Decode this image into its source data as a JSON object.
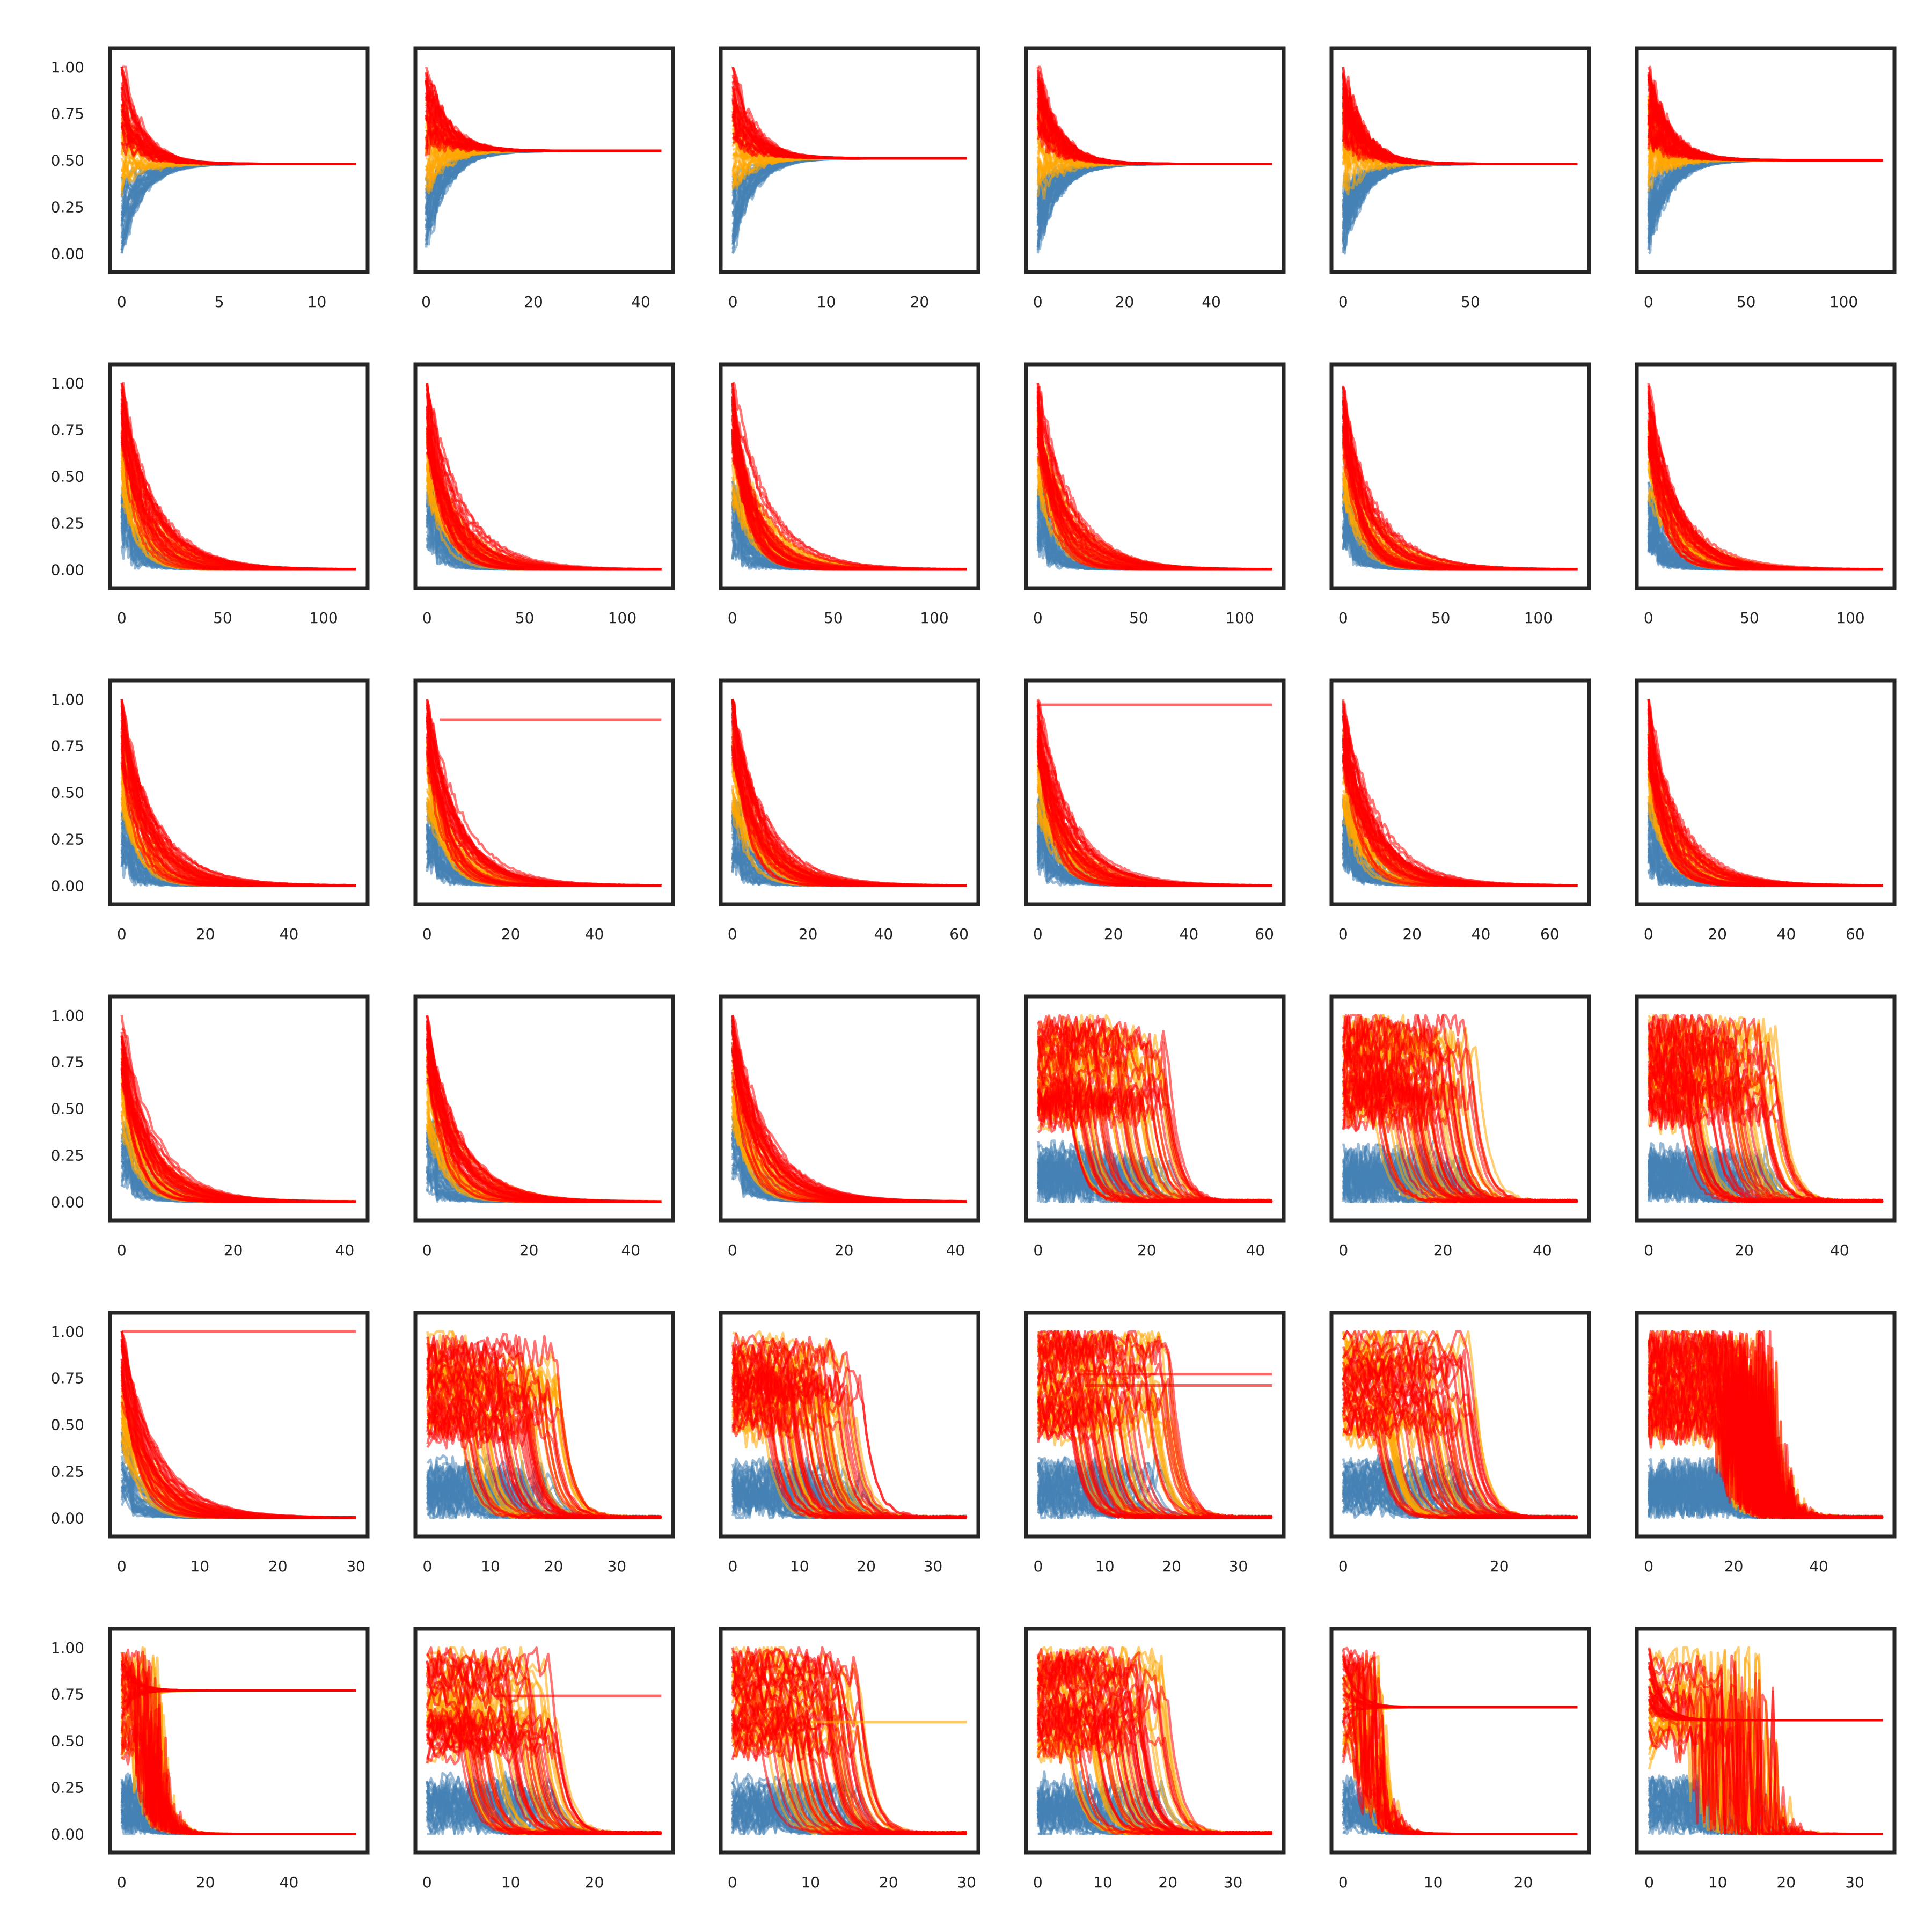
{
  "figure": {
    "rows": 6,
    "cols": 6,
    "colors": {
      "blue": "#4682b4",
      "orange": "#ffa500",
      "red": "#ff0000",
      "frame": "#262626"
    },
    "ylim": [
      -0.1,
      1.1
    ],
    "ytick_labels": [
      "0.00",
      "0.25",
      "0.50",
      "0.75",
      "1.00"
    ]
  },
  "chart_data": [
    {
      "type": "line",
      "row": 0,
      "col": 0,
      "xlim": [
        -0.6,
        12.6
      ],
      "xticks": [
        0,
        5,
        10
      ],
      "converge": 0.48,
      "shape": "to-value"
    },
    {
      "type": "line",
      "row": 0,
      "col": 1,
      "xlim": [
        -2,
        46
      ],
      "xticks": [
        0,
        20,
        40
      ],
      "converge": 0.55,
      "shape": "to-value"
    },
    {
      "type": "line",
      "row": 0,
      "col": 2,
      "xlim": [
        -1.3,
        26.3
      ],
      "xticks": [
        0,
        10,
        20
      ],
      "converge": 0.51,
      "shape": "to-value"
    },
    {
      "type": "line",
      "row": 0,
      "col": 3,
      "xlim": [
        -2.7,
        56.7
      ],
      "xticks": [
        0,
        20,
        40
      ],
      "converge": 0.48,
      "shape": "to-value"
    },
    {
      "type": "line",
      "row": 0,
      "col": 4,
      "xlim": [
        -4.6,
        96.6
      ],
      "xticks": [
        0,
        50
      ],
      "converge": 0.48,
      "shape": "to-value"
    },
    {
      "type": "line",
      "row": 0,
      "col": 5,
      "xlim": [
        -6,
        126
      ],
      "xticks": [
        0,
        50,
        100
      ],
      "converge": 0.5,
      "shape": "to-value"
    },
    {
      "type": "line",
      "row": 1,
      "col": 0,
      "xlim": [
        -5.8,
        121.8
      ],
      "xticks": [
        0,
        50,
        100
      ],
      "converge": 0.0,
      "shape": "decay"
    },
    {
      "type": "line",
      "row": 1,
      "col": 1,
      "xlim": [
        -6,
        126
      ],
      "xticks": [
        0,
        50,
        100
      ],
      "converge": 0.0,
      "shape": "decay"
    },
    {
      "type": "line",
      "row": 1,
      "col": 2,
      "xlim": [
        -5.8,
        121.8
      ],
      "xticks": [
        0,
        50,
        100
      ],
      "converge": 0.0,
      "shape": "decay"
    },
    {
      "type": "line",
      "row": 1,
      "col": 3,
      "xlim": [
        -5.8,
        121.8
      ],
      "xticks": [
        0,
        50,
        100
      ],
      "converge": 0.0,
      "shape": "decay"
    },
    {
      "type": "line",
      "row": 1,
      "col": 4,
      "xlim": [
        -6,
        126
      ],
      "xticks": [
        0,
        50,
        100
      ],
      "converge": 0.0,
      "shape": "decay"
    },
    {
      "type": "line",
      "row": 1,
      "col": 5,
      "xlim": [
        -5.8,
        121.8
      ],
      "xticks": [
        0,
        50,
        100
      ],
      "converge": 0.0,
      "shape": "decay"
    },
    {
      "type": "line",
      "row": 2,
      "col": 0,
      "xlim": [
        -2.8,
        58.8
      ],
      "xticks": [
        0,
        20,
        40
      ],
      "converge": 0.0,
      "shape": "decay"
    },
    {
      "type": "line",
      "row": 2,
      "col": 1,
      "xlim": [
        -2.8,
        58.8
      ],
      "xticks": [
        0,
        20,
        40
      ],
      "converge": 0.0,
      "shape": "decay",
      "flat": [
        {
          "value": 0.89,
          "color": "red",
          "start": 3
        }
      ]
    },
    {
      "type": "line",
      "row": 2,
      "col": 2,
      "xlim": [
        -3.1,
        65.1
      ],
      "xticks": [
        0,
        20,
        40,
        60
      ],
      "converge": 0.0,
      "shape": "decay"
    },
    {
      "type": "line",
      "row": 2,
      "col": 3,
      "xlim": [
        -3.1,
        65.1
      ],
      "xticks": [
        0,
        20,
        40,
        60
      ],
      "converge": 0.0,
      "shape": "decay",
      "flat": [
        {
          "value": 0.97,
          "color": "red",
          "start": 0
        }
      ]
    },
    {
      "type": "line",
      "row": 2,
      "col": 4,
      "xlim": [
        -3.4,
        71.4
      ],
      "xticks": [
        0,
        20,
        40,
        60
      ],
      "converge": 0.0,
      "shape": "decay"
    },
    {
      "type": "line",
      "row": 2,
      "col": 5,
      "xlim": [
        -3.4,
        71.4
      ],
      "xticks": [
        0,
        20,
        40,
        60
      ],
      "converge": 0.0,
      "shape": "decay"
    },
    {
      "type": "line",
      "row": 3,
      "col": 0,
      "xlim": [
        -2.1,
        44.1
      ],
      "xticks": [
        0,
        20,
        40
      ],
      "converge": 0.0,
      "shape": "decay"
    },
    {
      "type": "line",
      "row": 3,
      "col": 1,
      "xlim": [
        -2.3,
        48.3
      ],
      "xticks": [
        0,
        20,
        40
      ],
      "converge": 0.0,
      "shape": "decay"
    },
    {
      "type": "line",
      "row": 3,
      "col": 2,
      "xlim": [
        -2.1,
        44.1
      ],
      "xticks": [
        0,
        20,
        40
      ],
      "converge": 0.0,
      "shape": "decay"
    },
    {
      "type": "line",
      "row": 3,
      "col": 3,
      "xlim": [
        -2.2,
        45.2
      ],
      "xticks": [
        0,
        20,
        40
      ],
      "converge": 0.0,
      "shape": "plateau-drop"
    },
    {
      "type": "line",
      "row": 3,
      "col": 4,
      "xlim": [
        -2.4,
        49.4
      ],
      "xticks": [
        0,
        20,
        40
      ],
      "converge": 0.0,
      "shape": "plateau-drop"
    },
    {
      "type": "line",
      "row": 3,
      "col": 5,
      "xlim": [
        -2.5,
        51.5
      ],
      "xticks": [
        0,
        20,
        40
      ],
      "converge": 0.0,
      "shape": "plateau-drop"
    },
    {
      "type": "line",
      "row": 4,
      "col": 0,
      "xlim": [
        -1.5,
        31.5
      ],
      "xticks": [
        0,
        10,
        20,
        30
      ],
      "converge": 0.0,
      "shape": "decay",
      "flat": [
        {
          "value": 1.0,
          "color": "red",
          "start": 0
        }
      ]
    },
    {
      "type": "line",
      "row": 4,
      "col": 1,
      "xlim": [
        -1.9,
        38.9
      ],
      "xticks": [
        0,
        10,
        20,
        30
      ],
      "converge": 0.0,
      "shape": "plateau-drop"
    },
    {
      "type": "line",
      "row": 4,
      "col": 2,
      "xlim": [
        -1.8,
        36.8
      ],
      "xticks": [
        0,
        10,
        20,
        30
      ],
      "converge": 0.0,
      "shape": "plateau-drop"
    },
    {
      "type": "line",
      "row": 4,
      "col": 3,
      "xlim": [
        -1.8,
        36.8
      ],
      "xticks": [
        0,
        10,
        20,
        30
      ],
      "converge": 0.0,
      "shape": "plateau-drop",
      "flat": [
        {
          "value": 0.77,
          "color": "red",
          "start": 6
        },
        {
          "value": 0.71,
          "color": "red",
          "start": 7
        }
      ]
    },
    {
      "type": "line",
      "row": 4,
      "col": 4,
      "xlim": [
        -1.5,
        31.5
      ],
      "xticks": [
        0,
        20
      ],
      "converge": 0.0,
      "shape": "plateau-drop"
    },
    {
      "type": "line",
      "row": 4,
      "col": 5,
      "xlim": [
        -2.8,
        57.8
      ],
      "xticks": [
        0,
        20,
        40
      ],
      "converge": 0.0,
      "shape": "long-plateau"
    },
    {
      "type": "line",
      "row": 5,
      "col": 0,
      "xlim": [
        -2.8,
        58.8
      ],
      "xticks": [
        0,
        20,
        40
      ],
      "converge": 0.0,
      "shape": "bistable",
      "upper": 0.77
    },
    {
      "type": "line",
      "row": 5,
      "col": 1,
      "xlim": [
        -1.4,
        29.4
      ],
      "xticks": [
        0,
        10,
        20
      ],
      "converge": 0.0,
      "shape": "plateau-drop",
      "flat": [
        {
          "value": 0.74,
          "color": "red",
          "start": 8
        }
      ]
    },
    {
      "type": "line",
      "row": 5,
      "col": 2,
      "xlim": [
        -1.5,
        31.5
      ],
      "xticks": [
        0,
        10,
        20,
        30
      ],
      "converge": 0.0,
      "shape": "plateau-drop",
      "flat": [
        {
          "value": 0.6,
          "color": "orange",
          "start": 10
        }
      ]
    },
    {
      "type": "line",
      "row": 5,
      "col": 3,
      "xlim": [
        -1.8,
        37.8
      ],
      "xticks": [
        0,
        10,
        20,
        30
      ],
      "converge": 0.0,
      "shape": "plateau-drop"
    },
    {
      "type": "line",
      "row": 5,
      "col": 4,
      "xlim": [
        -1.3,
        27.3
      ],
      "xticks": [
        0,
        10,
        20
      ],
      "converge": 0.0,
      "shape": "bistable",
      "upper": 0.68
    },
    {
      "type": "line",
      "row": 5,
      "col": 5,
      "xlim": [
        -1.8,
        35.8
      ],
      "xticks": [
        0,
        10,
        20,
        30
      ],
      "converge": 0.0,
      "shape": "bistable-plateau",
      "upper": 0.61
    }
  ]
}
